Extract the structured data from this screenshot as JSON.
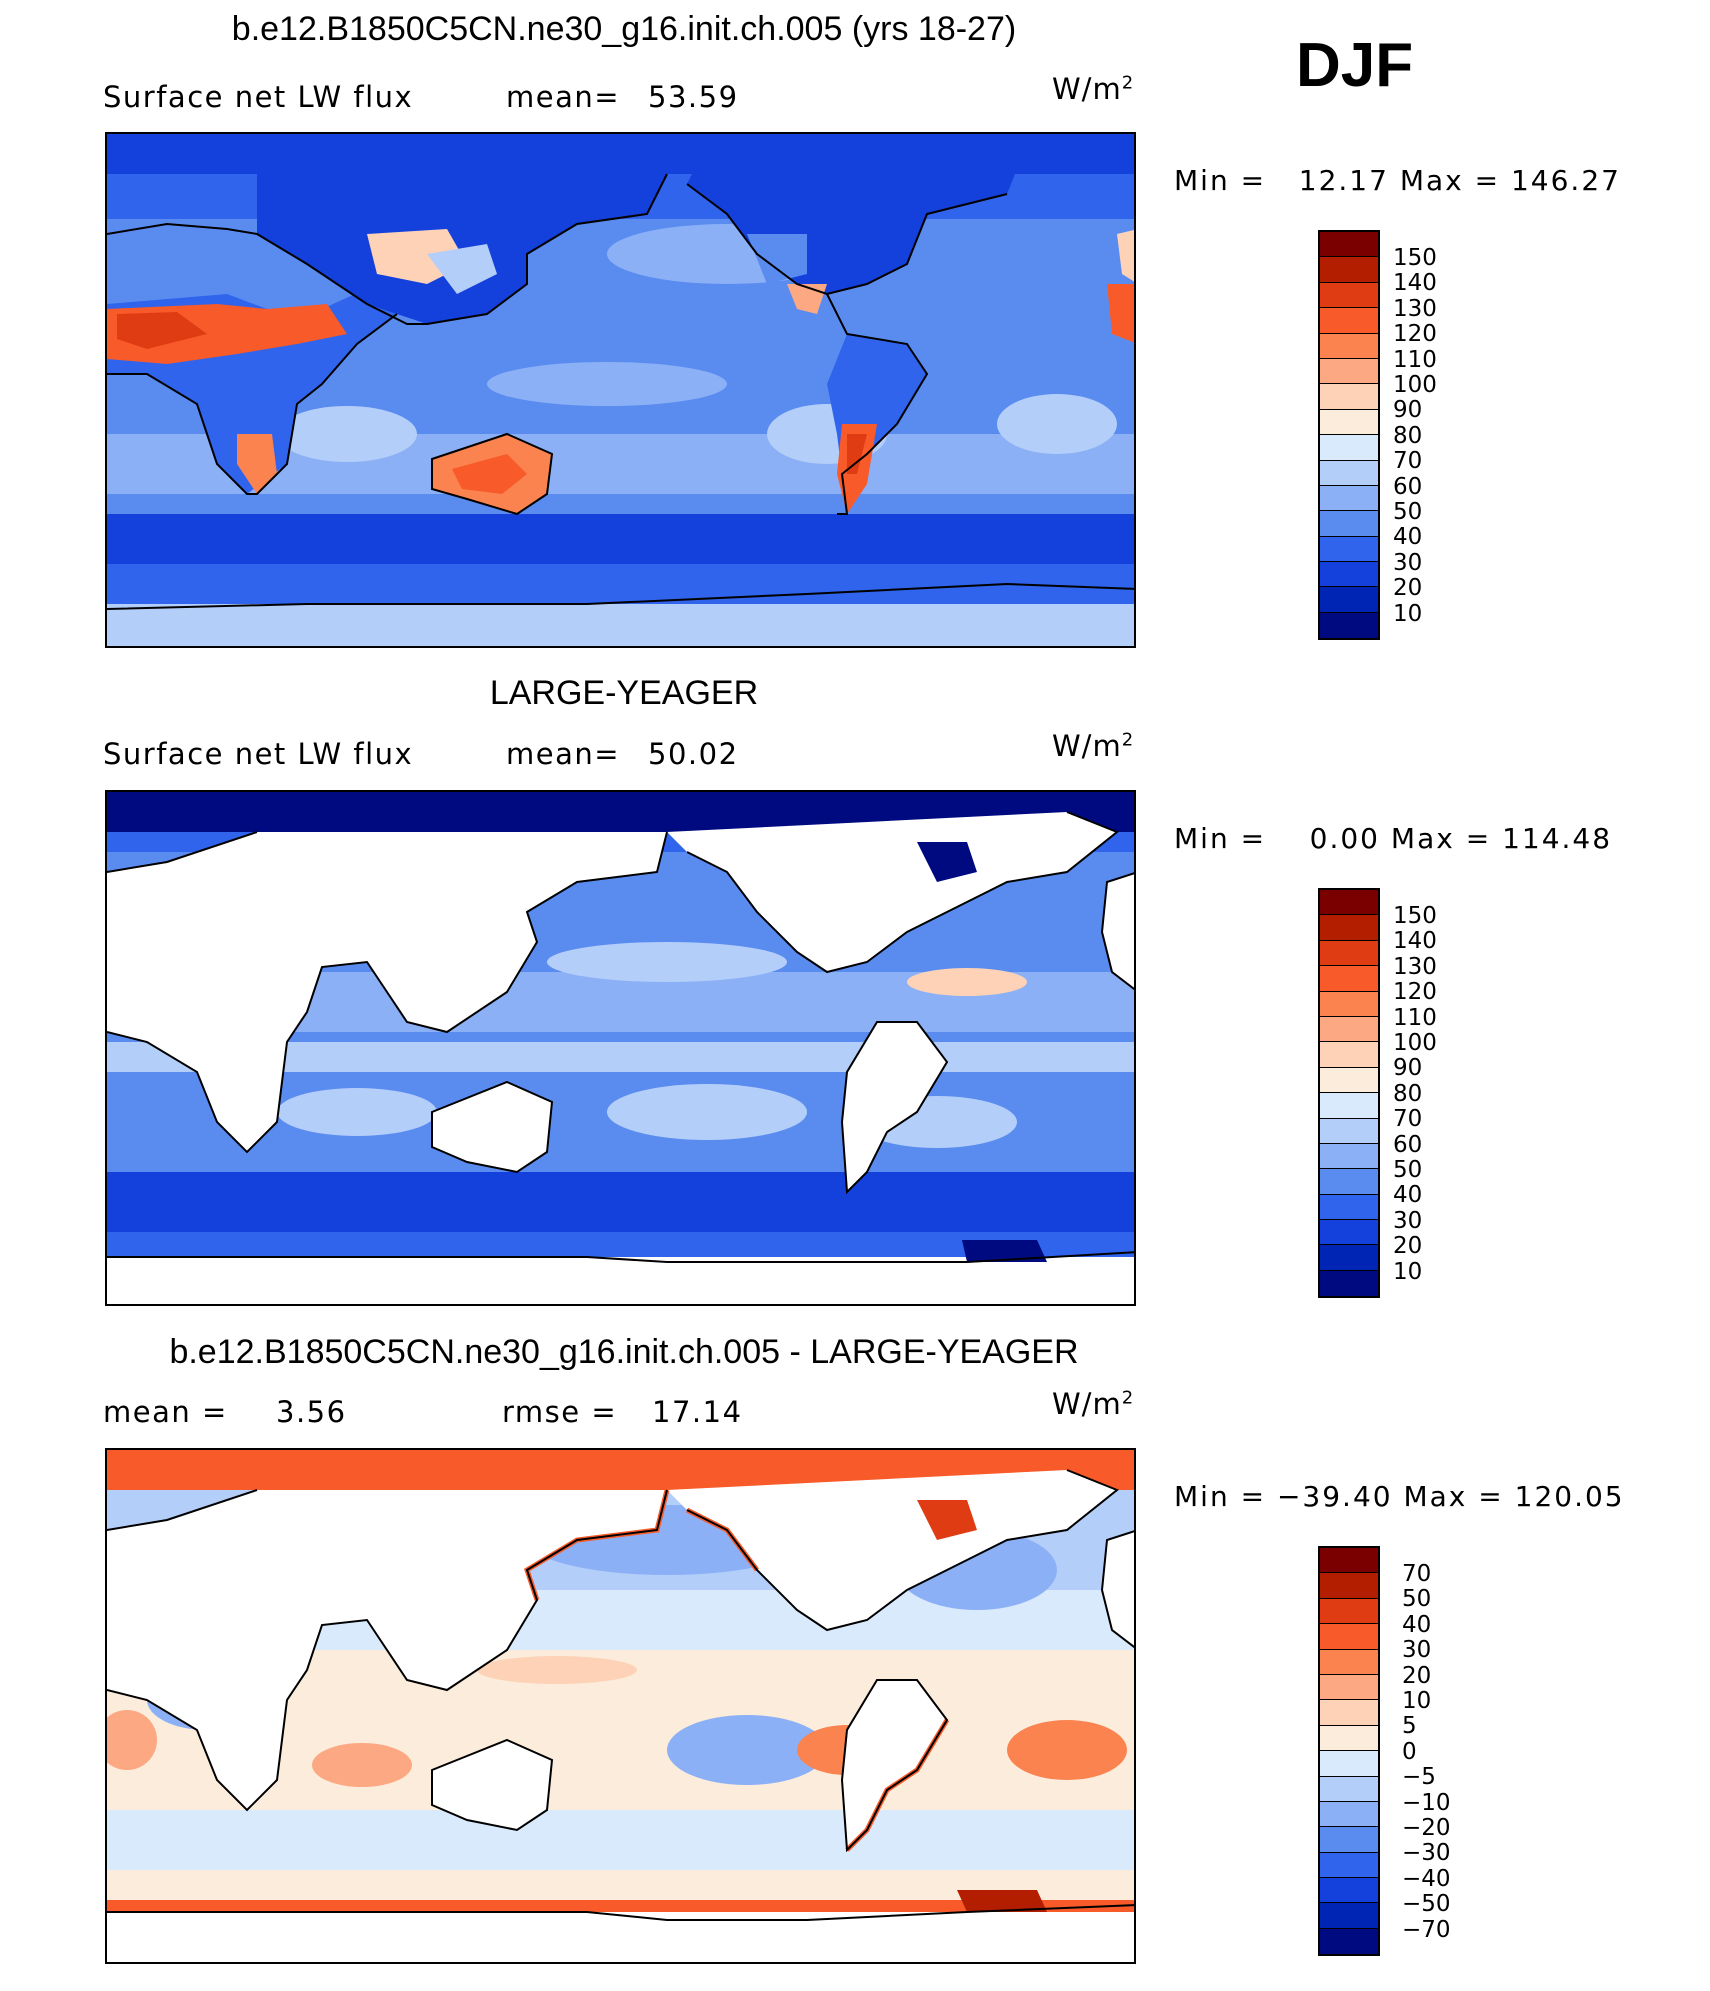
{
  "season": "DJF",
  "units_base": "W/m",
  "units_exp": "2",
  "panels": [
    {
      "title": "b.e12.B1850C5CN.ne30_g16.init.ch.005 (yrs 18-27)",
      "variable": "Surface net LW flux",
      "stat_label": "mean=",
      "stat_value": "53.59",
      "min_label": "Min =",
      "min_value": "12.17",
      "max_label": "Max =",
      "max_value": "146.27"
    },
    {
      "title": "LARGE-YEAGER",
      "variable": "Surface net LW flux",
      "stat_label": "mean=",
      "stat_value": "50.02",
      "min_label": "Min =",
      "min_value": "0.00",
      "max_label": "Max =",
      "max_value": "114.48"
    },
    {
      "title": "b.e12.B1850C5CN.ne30_g16.init.ch.005 - LARGE-YEAGER",
      "stat_label": "mean =",
      "stat_value": "3.56",
      "rmse_label": "rmse =",
      "rmse_value": "17.14",
      "min_label": "Min =",
      "min_value": "−39.40",
      "max_label": "Max =",
      "max_value": "120.05"
    }
  ],
  "colorbar_flux": {
    "labels": [
      "150",
      "140",
      "130",
      "120",
      "110",
      "100",
      "90",
      "80",
      "70",
      "60",
      "50",
      "40",
      "30",
      "20",
      "10"
    ],
    "colors": [
      "#7a0000",
      "#b41e00",
      "#e03c14",
      "#f85a2a",
      "#fa8350",
      "#fca882",
      "#fdd2b6",
      "#fcecdc",
      "#d8eafc",
      "#b4cefa",
      "#8cb0f6",
      "#5a8cf0",
      "#3064ec",
      "#1440dc",
      "#0024b4",
      "#000a80"
    ]
  },
  "colorbar_diff": {
    "labels": [
      "70",
      "50",
      "40",
      "30",
      "20",
      "10",
      "5",
      "0",
      "−5",
      "−10",
      "−20",
      "−30",
      "−40",
      "−50",
      "−70"
    ],
    "colors": [
      "#7a0000",
      "#b41e00",
      "#e03c14",
      "#f85a2a",
      "#fa8350",
      "#fca882",
      "#fdd2b6",
      "#fcecdc",
      "#d8eafc",
      "#b4cefa",
      "#8cb0f6",
      "#5a8cf0",
      "#3064ec",
      "#1440dc",
      "#0024b4",
      "#000a80"
    ]
  }
}
